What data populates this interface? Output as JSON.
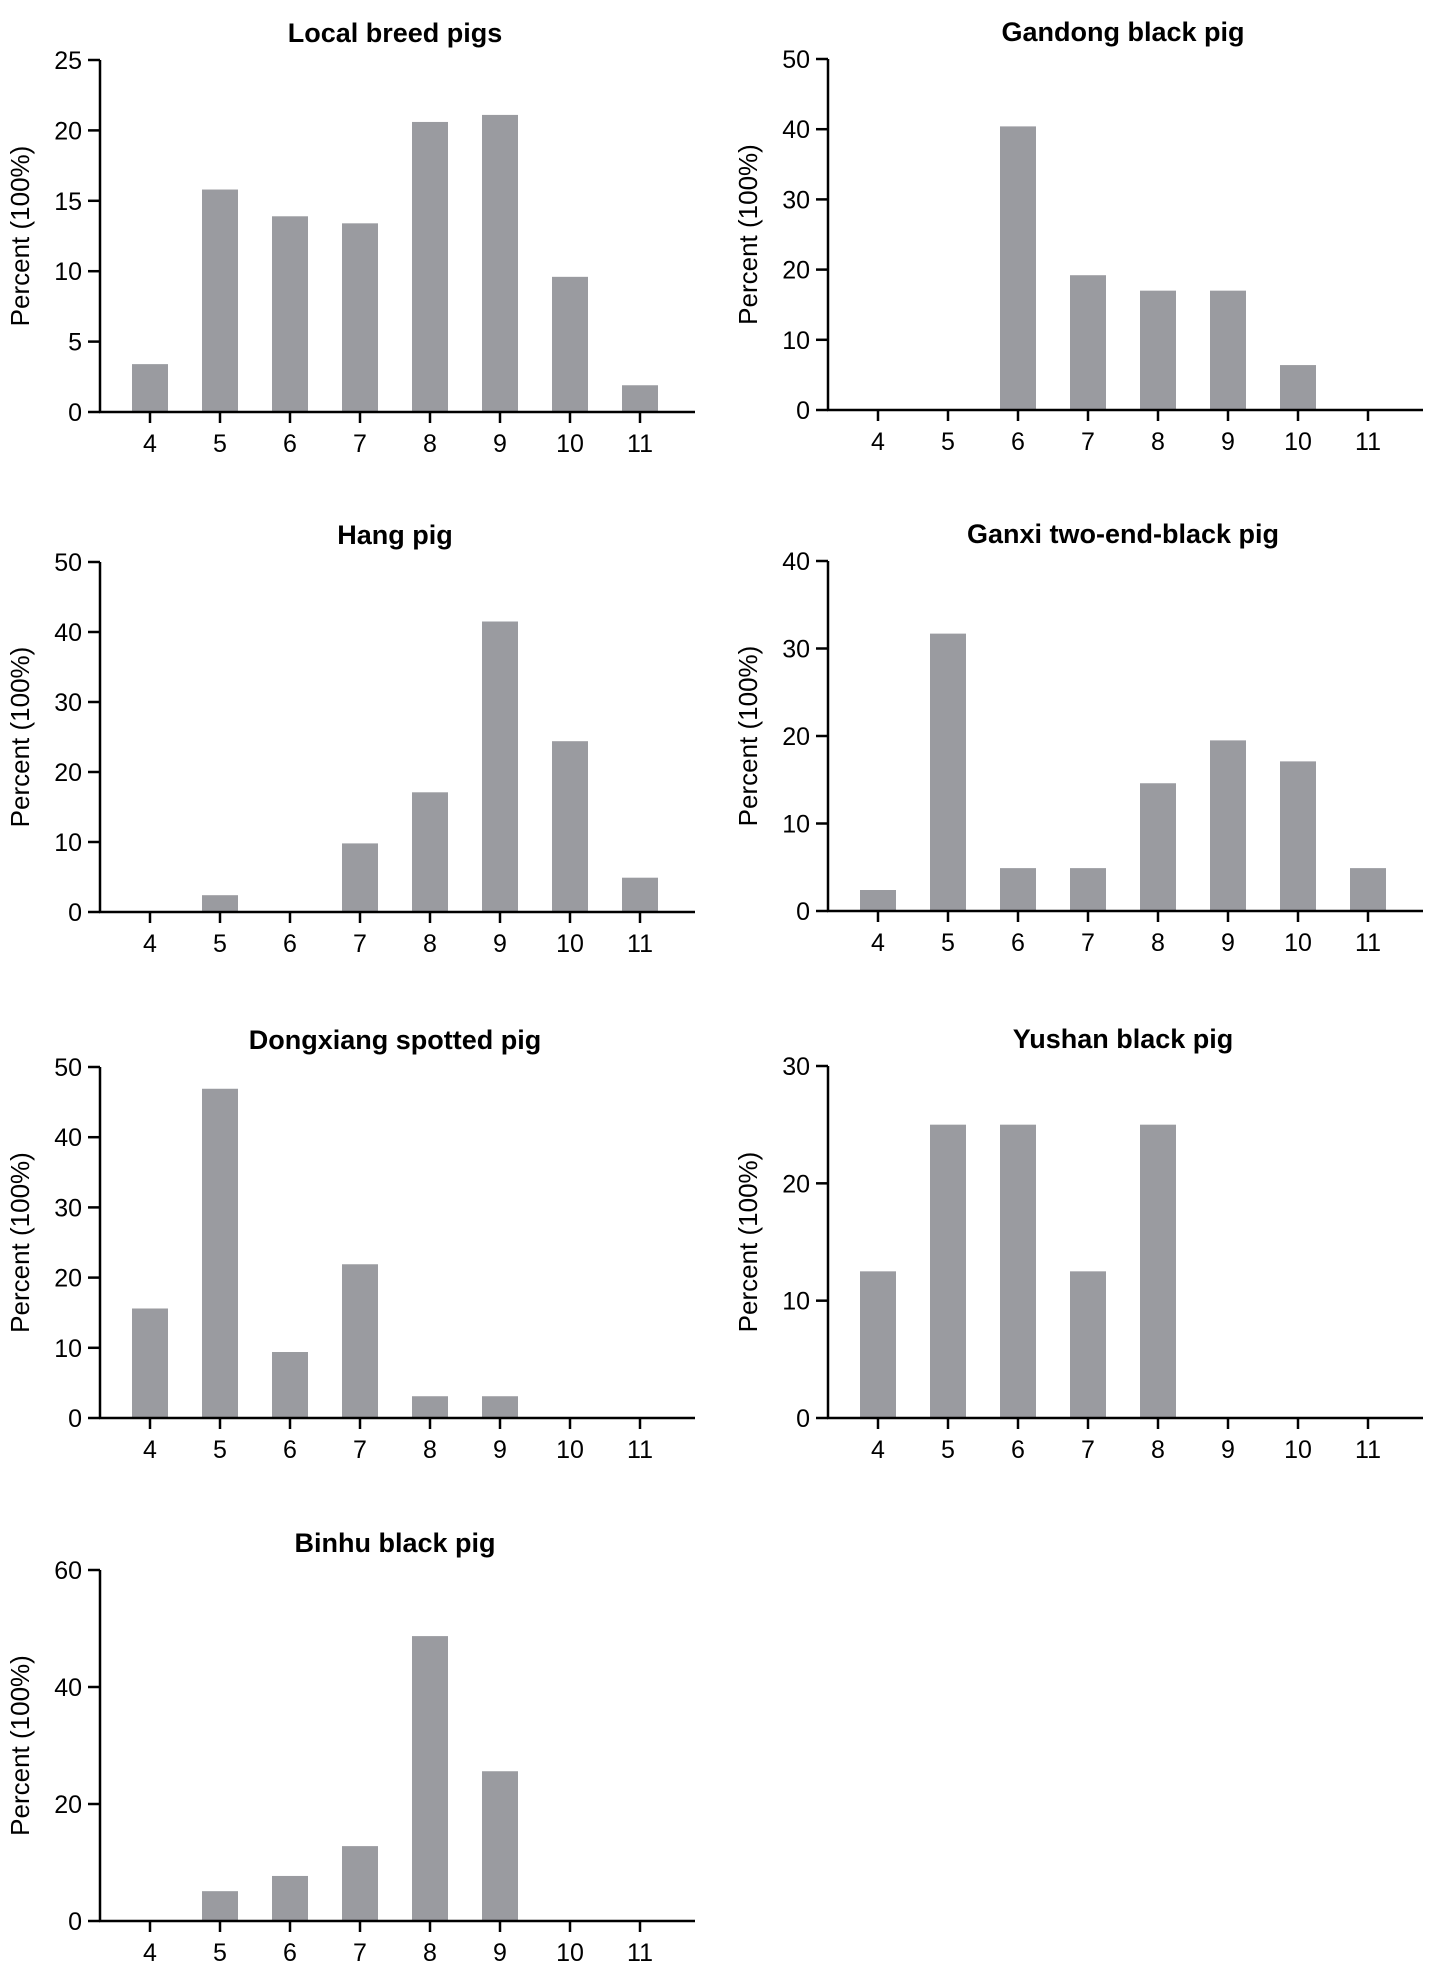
{
  "chart_data": [
    {
      "type": "bar",
      "title": "Local breed pigs",
      "categories": [
        "4",
        "5",
        "6",
        "7",
        "8",
        "9",
        "10",
        "11"
      ],
      "values": [
        3.4,
        15.8,
        13.9,
        13.4,
        20.6,
        21.1,
        9.6,
        1.9
      ],
      "ylabel": "Percent (100%)",
      "xlabel": "",
      "ylim": [
        0,
        25
      ],
      "yticks": [
        "0",
        "5",
        "10",
        "15",
        "20",
        "25"
      ],
      "bar_color": "#9a9ba0"
    },
    {
      "type": "bar",
      "title": "Gandong black pig",
      "categories": [
        "4",
        "5",
        "6",
        "7",
        "8",
        "9",
        "10",
        "11"
      ],
      "values": [
        0,
        0,
        40.4,
        19.2,
        17.0,
        17.0,
        6.4,
        0
      ],
      "ylabel": "Percent (100%)",
      "xlabel": "",
      "ylim": [
        0,
        50
      ],
      "yticks": [
        "0",
        "10",
        "20",
        "30",
        "40",
        "50"
      ],
      "bar_color": "#9a9ba0"
    },
    {
      "type": "bar",
      "title": "Hang pig",
      "categories": [
        "4",
        "5",
        "6",
        "7",
        "8",
        "9",
        "10",
        "11"
      ],
      "values": [
        0,
        2.4,
        0,
        9.8,
        17.1,
        41.5,
        24.4,
        4.9
      ],
      "ylabel": "Percent (100%)",
      "xlabel": "",
      "ylim": [
        0,
        50
      ],
      "yticks": [
        "0",
        "10",
        "20",
        "30",
        "40",
        "50"
      ],
      "bar_color": "#9a9ba0"
    },
    {
      "type": "bar",
      "title": "Ganxi two-end-black pig",
      "categories": [
        "4",
        "5",
        "6",
        "7",
        "8",
        "9",
        "10",
        "11"
      ],
      "values": [
        2.4,
        31.7,
        4.9,
        4.9,
        14.6,
        19.5,
        17.1,
        4.9
      ],
      "ylabel": "Percent (100%)",
      "xlabel": "",
      "ylim": [
        0,
        40
      ],
      "yticks": [
        "0",
        "10",
        "20",
        "30",
        "40"
      ],
      "bar_color": "#9a9ba0"
    },
    {
      "type": "bar",
      "title": "Dongxiang spotted pig",
      "categories": [
        "4",
        "5",
        "6",
        "7",
        "8",
        "9",
        "10",
        "11"
      ],
      "values": [
        15.6,
        46.9,
        9.4,
        21.9,
        3.1,
        3.1,
        0,
        0
      ],
      "ylabel": "Percent (100%)",
      "xlabel": "",
      "ylim": [
        0,
        50
      ],
      "yticks": [
        "0",
        "10",
        "20",
        "30",
        "40",
        "50"
      ],
      "bar_color": "#9a9ba0"
    },
    {
      "type": "bar",
      "title": "Yushan black pig",
      "categories": [
        "4",
        "5",
        "6",
        "7",
        "8",
        "9",
        "10",
        "11"
      ],
      "values": [
        12.5,
        25.0,
        25.0,
        12.5,
        25.0,
        0,
        0,
        0
      ],
      "ylabel": "Percent (100%)",
      "xlabel": "",
      "ylim": [
        0,
        30
      ],
      "yticks": [
        "0",
        "10",
        "20",
        "30"
      ],
      "bar_color": "#9a9ba0"
    },
    {
      "type": "bar",
      "title": "Binhu black pig",
      "categories": [
        "4",
        "5",
        "6",
        "7",
        "8",
        "9",
        "10",
        "11"
      ],
      "values": [
        0,
        5.1,
        7.7,
        12.8,
        48.7,
        25.6,
        0,
        0
      ],
      "ylabel": "Percent (100%)",
      "xlabel": "",
      "ylim": [
        0,
        60
      ],
      "yticks": [
        "0",
        "20",
        "40",
        "60"
      ],
      "bar_color": "#9a9ba0"
    }
  ]
}
